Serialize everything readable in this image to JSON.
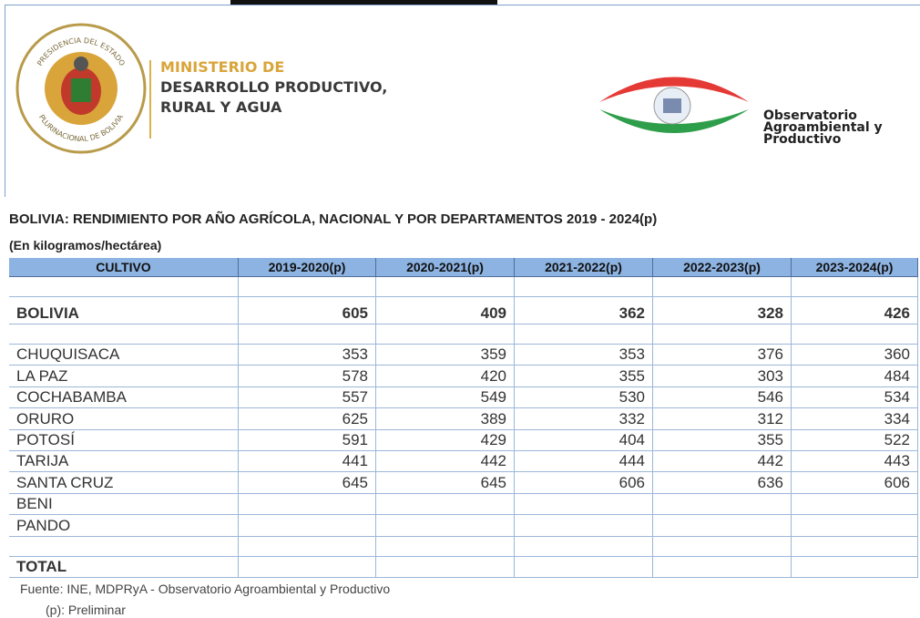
{
  "header": {
    "seal": {
      "top": "PRESIDENCIA DEL ESTADO",
      "bottom": "PLURINACIONAL DE BOLIVIA"
    },
    "ministry": [
      "MINISTERIO DE",
      "DESARROLLO PRODUCTIVO,",
      "RURAL Y AGUA"
    ],
    "observatory": [
      "Observatorio",
      "Agroambiental y",
      "Productivo"
    ]
  },
  "title": "BOLIVIA: RENDIMIENTO POR AÑO AGRÍCOLA, NACIONAL Y POR DEPARTAMENTOS 2019 - 2024(p)",
  "subtitle": "(En kilogramos/hectárea)",
  "table": {
    "columns": [
      "CULTIVO",
      "2019-2020(p)",
      "2020-2021(p)",
      "2021-2022(p)",
      "2022-2023(p)",
      "2023-2024(p)"
    ],
    "national": {
      "label": "BOLIVIA",
      "values": [
        605,
        409,
        362,
        328,
        426
      ]
    },
    "departments": [
      {
        "label": "CHUQUISACA",
        "values": [
          353,
          359,
          353,
          376,
          360
        ]
      },
      {
        "label": "LA PAZ",
        "values": [
          578,
          420,
          355,
          303,
          484
        ]
      },
      {
        "label": "COCHABAMBA",
        "values": [
          557,
          549,
          530,
          546,
          534
        ]
      },
      {
        "label": "ORURO",
        "values": [
          625,
          389,
          332,
          312,
          334
        ]
      },
      {
        "label": "POTOSÍ",
        "values": [
          591,
          429,
          404,
          355,
          522
        ]
      },
      {
        "label": "TARIJA",
        "values": [
          441,
          442,
          444,
          442,
          443
        ]
      },
      {
        "label": "SANTA CRUZ",
        "values": [
          645,
          645,
          606,
          636,
          606
        ]
      },
      {
        "label": "BENI"
      },
      {
        "label": "PANDO"
      }
    ],
    "total": {
      "label": "TOTAL"
    }
  },
  "source": "Fuente: INE, MDPRyA - Observatorio Agroambiental y Productivo",
  "note": "(p): Preliminar"
}
